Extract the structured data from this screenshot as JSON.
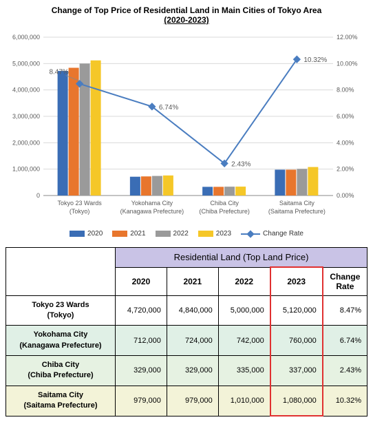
{
  "title_line1": "Change of Top Price of Residential Land in Main Cities of Tokyo Area",
  "title_line2": "(2020-2023)",
  "chart": {
    "type": "bar+line",
    "categories": [
      {
        "name": "Tokyo 23 Wards",
        "sub": "(Tokyo)"
      },
      {
        "name": "Yokohama City",
        "sub": "(Kanagawa Prefecture)"
      },
      {
        "name": "Chiba City",
        "sub": "(Chiba Prefecture)"
      },
      {
        "name": "Saitama City",
        "sub": "(Saitama Prefecture)"
      }
    ],
    "series": [
      {
        "label": "2020",
        "color": "#3a6db5",
        "values": [
          4720000,
          712000,
          329000,
          979000
        ]
      },
      {
        "label": "2021",
        "color": "#e8762d",
        "values": [
          4840000,
          724000,
          329000,
          979000
        ]
      },
      {
        "label": "2022",
        "color": "#9a9a9a",
        "values": [
          5000000,
          742000,
          335000,
          1010000
        ]
      },
      {
        "label": "2023",
        "color": "#f5c728",
        "values": [
          5120000,
          760000,
          337000,
          1080000
        ]
      }
    ],
    "line_series": {
      "label": "Change Rate",
      "color": "#4a7dc0",
      "values": [
        8.47,
        6.74,
        2.43,
        10.32
      ],
      "labels": [
        "8.47%",
        "6.74%",
        "2.43%",
        "10.32%"
      ]
    },
    "y_left": {
      "min": 0,
      "max": 6000000,
      "step": 1000000
    },
    "y_right": {
      "min": 0,
      "max": 12,
      "step": 2,
      "suffix": "%"
    },
    "grid_color": "#d9d9d9",
    "axis_color": "#888888",
    "text_color": "#595959",
    "font_size_axis": 9
  },
  "table": {
    "title": "Residential Land (Top Land Price)",
    "col_headers": [
      "2020",
      "2021",
      "2022",
      "2023",
      "Change Rate"
    ],
    "rows": [
      {
        "label": "Tokyo 23 Wards",
        "sub": "(Tokyo)",
        "bg": "#ffffff",
        "cells": [
          "4,720,000",
          "4,840,000",
          "5,000,000",
          "5,120,000",
          "8.47%"
        ]
      },
      {
        "label": "Yokohama City",
        "sub": "(Kanagawa Prefecture)",
        "bg": "#e0f0e6",
        "cells": [
          "712,000",
          "724,000",
          "742,000",
          "760,000",
          "6.74%"
        ]
      },
      {
        "label": "Chiba City",
        "sub": "(Chiba Prefecture)",
        "bg": "#e6f2e2",
        "cells": [
          "329,000",
          "329,000",
          "335,000",
          "337,000",
          "2.43%"
        ]
      },
      {
        "label": "Saitama City",
        "sub": "(Saitama Prefecture)",
        "bg": "#f3f3d8",
        "cells": [
          "979,000",
          "979,000",
          "1,010,000",
          "1,080,000",
          "10.32%"
        ]
      }
    ],
    "highlight_col_index": 3
  }
}
